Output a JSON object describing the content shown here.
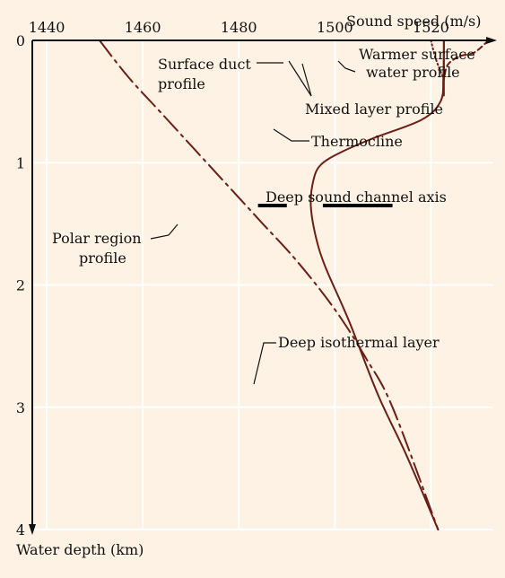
{
  "chart_data": {
    "type": "line",
    "xlabel": "Sound speed (m/s)",
    "ylabel": "Water depth (km)",
    "xlim": [
      1437,
      1533
    ],
    "ylim": [
      0,
      4
    ],
    "x_ticks": [
      1440,
      1460,
      1480,
      1500,
      1520
    ],
    "y_ticks": [
      0,
      1,
      2,
      3,
      4
    ],
    "x_axis_position": "top",
    "y_axis_inverted": true,
    "grid": true,
    "colors": {
      "background": "#fdf2e4",
      "grid": "#ffffff",
      "axis": "#111111",
      "curve": "#6b1e14"
    },
    "series": [
      {
        "name": "Thermocline",
        "style": "solid",
        "x": [
          1522.7,
          1522.6,
          1522,
          1518,
          1508,
          1501,
          1497,
          1495.5,
          1495,
          1496,
          1498,
          1503,
          1509,
          1515,
          1521.5
        ],
        "y": [
          0.0,
          0.3,
          0.5,
          0.65,
          0.8,
          0.92,
          1.02,
          1.15,
          1.35,
          1.6,
          1.85,
          2.3,
          2.9,
          3.4,
          4.0
        ]
      },
      {
        "name": "Mixed layer profile",
        "style": "solid",
        "x": [
          1522.7,
          1522.7
        ],
        "y": [
          0.0,
          0.45
        ]
      },
      {
        "name": "Surface duct profile",
        "style": "dotted",
        "x": [
          1520,
          1521,
          1522.5
        ],
        "y": [
          0.0,
          0.15,
          0.3
        ]
      },
      {
        "name": "Warmer surface water profile",
        "style": "dashed",
        "x": [
          1532,
          1529,
          1526,
          1523.5,
          1522.7
        ],
        "y": [
          0.0,
          0.1,
          0.13,
          0.2,
          0.32
        ]
      },
      {
        "name": "Polar region profile",
        "style": "dash-dot",
        "x": [
          1451,
          1457,
          1464,
          1471,
          1478,
          1485,
          1492,
          1500,
          1506.5,
          1512,
          1521.5
        ],
        "y": [
          0.0,
          0.3,
          0.6,
          0.9,
          1.2,
          1.5,
          1.8,
          2.2,
          2.6,
          3.0,
          4.0
        ]
      }
    ],
    "annotations": [
      {
        "lines": [
          "Warmer surface",
          "water profile"
        ],
        "point": [
          1526,
          0.13
        ]
      },
      {
        "lines": [
          "Surface duct",
          "profile"
        ],
        "point": [
          1521,
          0.13
        ]
      },
      {
        "lines": [
          "Mixed layer profile"
        ],
        "point": [
          1522.7,
          0.2
        ]
      },
      {
        "lines": [
          "Thermocline"
        ],
        "point": [
          1515,
          0.72
        ]
      },
      {
        "lines": [
          "Deep sound channel axis"
        ],
        "point": [
          1494,
          1.35
        ]
      },
      {
        "lines": [
          "Polar region",
          "profile"
        ],
        "point": [
          1485,
          1.5
        ]
      },
      {
        "lines": [
          "Deep isothermal layer"
        ],
        "point": [
          1510,
          2.75
        ]
      }
    ],
    "sound_channel_axis": {
      "depth": 1.35,
      "x_start": 1484,
      "x_end": 1512
    }
  }
}
